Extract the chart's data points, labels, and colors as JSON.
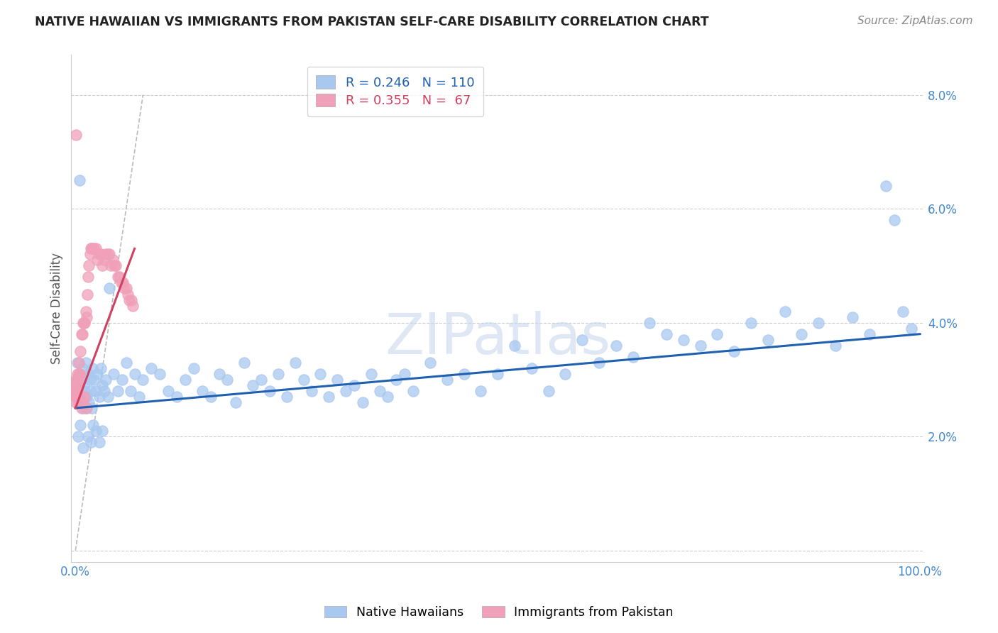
{
  "title": "NATIVE HAWAIIAN VS IMMIGRANTS FROM PAKISTAN SELF-CARE DISABILITY CORRELATION CHART",
  "source": "Source: ZipAtlas.com",
  "ylabel": "Self-Care Disability",
  "blue_R": 0.246,
  "blue_N": 110,
  "pink_R": 0.355,
  "pink_N": 67,
  "blue_color": "#A8C8F0",
  "pink_color": "#F0A0B8",
  "blue_line_color": "#2060B0",
  "pink_line_color": "#D04060",
  "ref_line_color": "#BBBBBB",
  "axis_tick_color": "#4488CC",
  "ylabel_color": "#555555",
  "title_color": "#222222",
  "source_color": "#888888",
  "watermark_color": "#C8D8EC",
  "watermark_text": "ZIPatlas",
  "legend_blue_label": "Native Hawaiians",
  "legend_pink_label": "Immigrants from Pakistan",
  "figsize": [
    14.06,
    8.92
  ],
  "dpi": 100,
  "blue_points_x": [
    0.001,
    0.002,
    0.003,
    0.004,
    0.005,
    0.006,
    0.007,
    0.008,
    0.009,
    0.01,
    0.011,
    0.012,
    0.013,
    0.015,
    0.016,
    0.017,
    0.018,
    0.019,
    0.02,
    0.022,
    0.024,
    0.026,
    0.028,
    0.03,
    0.032,
    0.034,
    0.036,
    0.038,
    0.04,
    0.045,
    0.05,
    0.055,
    0.06,
    0.065,
    0.07,
    0.075,
    0.08,
    0.09,
    0.1,
    0.11,
    0.12,
    0.13,
    0.14,
    0.15,
    0.16,
    0.17,
    0.18,
    0.19,
    0.2,
    0.21,
    0.22,
    0.23,
    0.24,
    0.25,
    0.26,
    0.27,
    0.28,
    0.29,
    0.3,
    0.31,
    0.32,
    0.33,
    0.34,
    0.35,
    0.36,
    0.37,
    0.38,
    0.39,
    0.4,
    0.42,
    0.44,
    0.46,
    0.48,
    0.5,
    0.52,
    0.54,
    0.56,
    0.58,
    0.6,
    0.62,
    0.64,
    0.66,
    0.68,
    0.7,
    0.72,
    0.74,
    0.76,
    0.78,
    0.8,
    0.82,
    0.84,
    0.86,
    0.88,
    0.9,
    0.92,
    0.94,
    0.96,
    0.97,
    0.98,
    0.99,
    0.003,
    0.006,
    0.009,
    0.012,
    0.015,
    0.018,
    0.021,
    0.024,
    0.028,
    0.032
  ],
  "blue_points_y": [
    0.028,
    0.033,
    0.027,
    0.031,
    0.065,
    0.026,
    0.03,
    0.032,
    0.025,
    0.029,
    0.028,
    0.033,
    0.027,
    0.031,
    0.026,
    0.03,
    0.028,
    0.025,
    0.032,
    0.03,
    0.028,
    0.031,
    0.027,
    0.032,
    0.029,
    0.028,
    0.03,
    0.027,
    0.046,
    0.031,
    0.028,
    0.03,
    0.033,
    0.028,
    0.031,
    0.027,
    0.03,
    0.032,
    0.031,
    0.028,
    0.027,
    0.03,
    0.032,
    0.028,
    0.027,
    0.031,
    0.03,
    0.026,
    0.033,
    0.029,
    0.03,
    0.028,
    0.031,
    0.027,
    0.033,
    0.03,
    0.028,
    0.031,
    0.027,
    0.03,
    0.028,
    0.029,
    0.026,
    0.031,
    0.028,
    0.027,
    0.03,
    0.031,
    0.028,
    0.033,
    0.03,
    0.031,
    0.028,
    0.031,
    0.036,
    0.032,
    0.028,
    0.031,
    0.037,
    0.033,
    0.036,
    0.034,
    0.04,
    0.038,
    0.037,
    0.036,
    0.038,
    0.035,
    0.04,
    0.037,
    0.042,
    0.038,
    0.04,
    0.036,
    0.041,
    0.038,
    0.064,
    0.058,
    0.042,
    0.039,
    0.02,
    0.022,
    0.018,
    0.025,
    0.02,
    0.019,
    0.022,
    0.021,
    0.019,
    0.021
  ],
  "pink_points_x": [
    0.0002,
    0.0003,
    0.0004,
    0.0005,
    0.0006,
    0.0007,
    0.0008,
    0.0009,
    0.001,
    0.0012,
    0.0014,
    0.0016,
    0.0018,
    0.002,
    0.0022,
    0.0025,
    0.003,
    0.0035,
    0.004,
    0.0045,
    0.005,
    0.006,
    0.007,
    0.008,
    0.009,
    0.01,
    0.011,
    0.012,
    0.013,
    0.014,
    0.015,
    0.016,
    0.017,
    0.018,
    0.019,
    0.02,
    0.022,
    0.024,
    0.026,
    0.028,
    0.03,
    0.032,
    0.034,
    0.036,
    0.038,
    0.04,
    0.042,
    0.044,
    0.046,
    0.048,
    0.05,
    0.052,
    0.054,
    0.056,
    0.058,
    0.06,
    0.062,
    0.064,
    0.066,
    0.068,
    0.003,
    0.005,
    0.007,
    0.009,
    0.011,
    0.013,
    0.001
  ],
  "pink_points_y": [
    0.027,
    0.028,
    0.027,
    0.029,
    0.028,
    0.027,
    0.03,
    0.026,
    0.028,
    0.029,
    0.028,
    0.027,
    0.03,
    0.031,
    0.029,
    0.028,
    0.03,
    0.029,
    0.033,
    0.031,
    0.031,
    0.035,
    0.038,
    0.038,
    0.04,
    0.04,
    0.04,
    0.042,
    0.041,
    0.045,
    0.048,
    0.05,
    0.052,
    0.053,
    0.053,
    0.053,
    0.053,
    0.053,
    0.051,
    0.052,
    0.052,
    0.05,
    0.051,
    0.052,
    0.052,
    0.052,
    0.05,
    0.051,
    0.05,
    0.05,
    0.048,
    0.048,
    0.047,
    0.047,
    0.046,
    0.046,
    0.045,
    0.044,
    0.044,
    0.043,
    0.026,
    0.027,
    0.025,
    0.026,
    0.027,
    0.025,
    0.073
  ]
}
